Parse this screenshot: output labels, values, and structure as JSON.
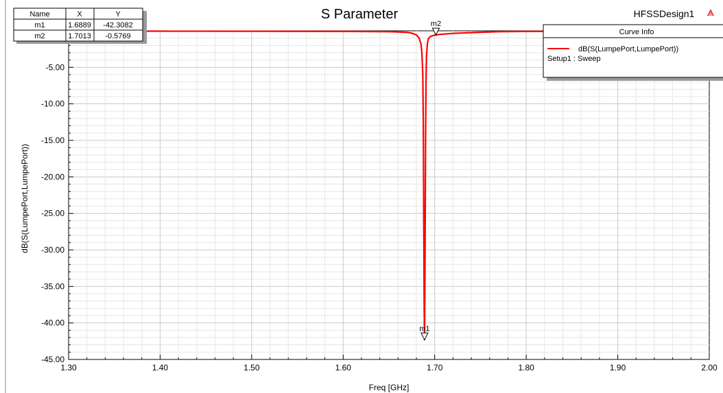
{
  "design_name": "HFSSDesign1",
  "chart_data": {
    "type": "line",
    "title": "S Parameter",
    "xlabel": "Freq [GHz]",
    "ylabel": "dB(S(LumpePort,LumpePort))",
    "xlim": [
      1.3,
      2.0
    ],
    "ylim": [
      -45.0,
      0.0
    ],
    "x_ticks": [
      1.3,
      1.4,
      1.5,
      1.6,
      1.7,
      1.8,
      1.9,
      2.0
    ],
    "x_tick_labels": [
      "1.30",
      "1.40",
      "1.50",
      "1.60",
      "1.70",
      "1.80",
      "1.90",
      "2.00"
    ],
    "y_ticks": [
      -5,
      -10,
      -15,
      -20,
      -25,
      -30,
      -35,
      -40,
      -45
    ],
    "y_tick_labels": [
      "-5.00",
      "-10.00",
      "-15.00",
      "-20.00",
      "-25.00",
      "-30.00",
      "-35.00",
      "-40.00",
      "-45.00"
    ],
    "grid": true,
    "line_color": "#ff0000",
    "series": [
      {
        "name": "dB(S(LumpePort,LumpePort))",
        "x": [
          1.3,
          1.4,
          1.5,
          1.6,
          1.65,
          1.66,
          1.67,
          1.675,
          1.68,
          1.683,
          1.685,
          1.686,
          1.687,
          1.6875,
          1.688,
          1.6885,
          1.6889,
          1.6895,
          1.69,
          1.6905,
          1.691,
          1.692,
          1.693,
          1.695,
          1.698,
          1.7013,
          1.705,
          1.71,
          1.72,
          1.73,
          1.75,
          1.77,
          1.8,
          1.9,
          2.0
        ],
        "y": [
          -0.05,
          -0.05,
          -0.06,
          -0.08,
          -0.12,
          -0.16,
          -0.22,
          -0.32,
          -0.55,
          -1.0,
          -1.8,
          -3.0,
          -6.0,
          -12.0,
          -25.0,
          -38.0,
          -42.3082,
          -30.0,
          -15.0,
          -7.0,
          -3.5,
          -1.8,
          -1.1,
          -0.8,
          -0.65,
          -0.5769,
          -0.5,
          -0.45,
          -0.35,
          -0.3,
          -0.2,
          -0.12,
          -0.08,
          -0.05,
          -0.05
        ]
      }
    ],
    "markers": [
      {
        "name": "m1",
        "x": 1.6889,
        "y": -42.3082
      },
      {
        "name": "m2",
        "x": 1.7013,
        "y": -0.5769
      }
    ],
    "marker_table": {
      "headers": [
        "Name",
        "X",
        "Y"
      ],
      "rows": [
        [
          "m1",
          "1.6889",
          "-42.3082"
        ],
        [
          "m2",
          "1.7013",
          "-0.5769"
        ]
      ]
    },
    "legend": {
      "title": "Curve Info",
      "entry": "dB(S(LumpePort,LumpePort))",
      "subtitle": "Setup1 : Sweep",
      "position": "top-right"
    }
  }
}
